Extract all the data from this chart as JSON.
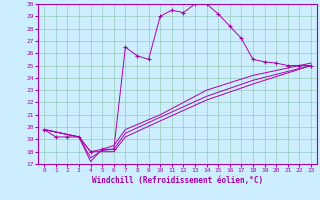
{
  "xlabel": "Windchill (Refroidissement éolien,°C)",
  "bg_color": "#cceeff",
  "line_color": "#aa00aa",
  "grid_color": "#99ccbb",
  "xlim": [
    -0.5,
    23.5
  ],
  "ylim": [
    17,
    30
  ],
  "xticks": [
    0,
    1,
    2,
    3,
    4,
    5,
    6,
    7,
    8,
    9,
    10,
    11,
    12,
    13,
    14,
    15,
    16,
    17,
    18,
    19,
    20,
    21,
    22,
    23
  ],
  "yticks": [
    17,
    18,
    19,
    20,
    21,
    22,
    23,
    24,
    25,
    26,
    27,
    28,
    29,
    30
  ],
  "series": [
    [
      0,
      19.8
    ],
    [
      1,
      19.2
    ],
    [
      2,
      19.2
    ],
    [
      3,
      19.2
    ],
    [
      4,
      18.0
    ],
    [
      5,
      18.2
    ],
    [
      6,
      18.2
    ],
    [
      7,
      26.5
    ],
    [
      8,
      25.8
    ],
    [
      9,
      25.5
    ],
    [
      10,
      29.0
    ],
    [
      11,
      29.5
    ],
    [
      12,
      29.3
    ],
    [
      13,
      30.0
    ],
    [
      14,
      30.0
    ],
    [
      15,
      29.2
    ],
    [
      16,
      28.2
    ],
    [
      17,
      27.2
    ],
    [
      18,
      25.5
    ],
    [
      19,
      25.3
    ],
    [
      20,
      25.2
    ],
    [
      21,
      25.0
    ],
    [
      22,
      25.0
    ],
    [
      23,
      25.0
    ]
  ],
  "line2": [
    [
      0,
      19.8
    ],
    [
      3,
      19.2
    ],
    [
      4,
      17.2
    ],
    [
      5,
      18.2
    ],
    [
      6,
      18.5
    ],
    [
      7,
      19.8
    ],
    [
      10,
      21.0
    ],
    [
      14,
      23.0
    ],
    [
      18,
      24.2
    ],
    [
      23,
      25.2
    ]
  ],
  "line3": [
    [
      0,
      19.8
    ],
    [
      3,
      19.2
    ],
    [
      4,
      18.0
    ],
    [
      5,
      18.0
    ],
    [
      6,
      18.0
    ],
    [
      7,
      19.2
    ],
    [
      10,
      20.5
    ],
    [
      14,
      22.2
    ],
    [
      18,
      23.5
    ],
    [
      23,
      25.0
    ]
  ],
  "line4": [
    [
      0,
      19.8
    ],
    [
      3,
      19.2
    ],
    [
      4,
      17.5
    ],
    [
      5,
      18.1
    ],
    [
      6,
      18.2
    ],
    [
      7,
      19.5
    ],
    [
      10,
      20.8
    ],
    [
      14,
      22.5
    ],
    [
      18,
      23.8
    ],
    [
      23,
      25.0
    ]
  ]
}
